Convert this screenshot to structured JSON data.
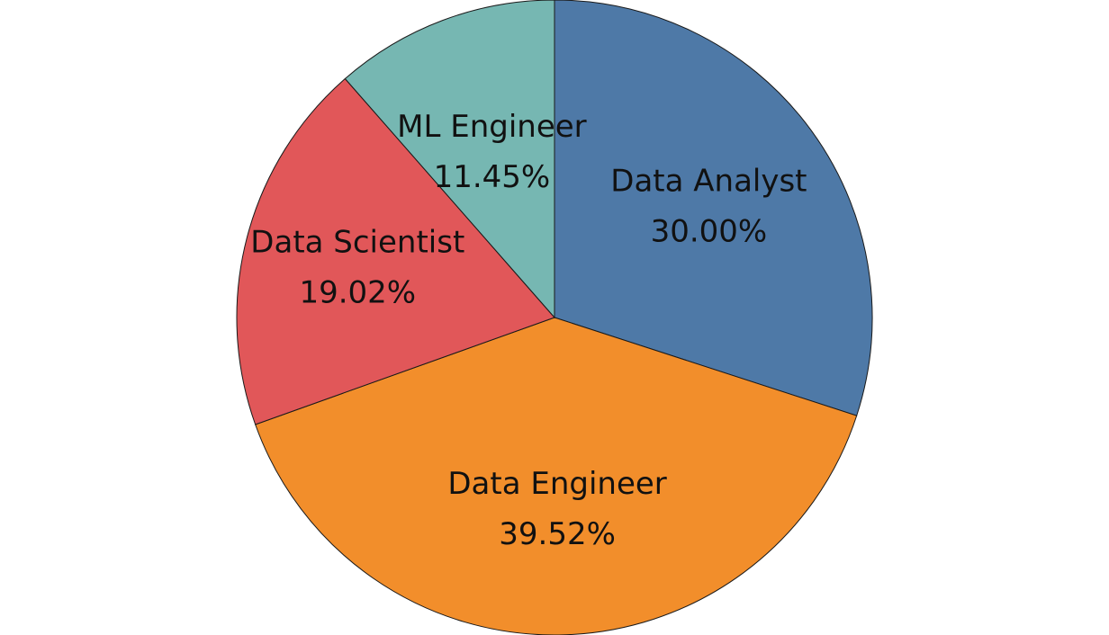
{
  "chart_data": {
    "type": "pie",
    "title": "",
    "legend": "none",
    "start": "12 o'clock",
    "direction": "clockwise",
    "slices": [
      {
        "name": "Data Analyst",
        "value": 30.0,
        "label": "30.00%",
        "color": "#4e79a7"
      },
      {
        "name": "Data Engineer",
        "value": 39.52,
        "label": "39.52%",
        "color": "#f28e2b"
      },
      {
        "name": "Data Scientist",
        "value": 19.02,
        "label": "19.02%",
        "color": "#e15759"
      },
      {
        "name": "ML Engineer",
        "value": 11.45,
        "label": "11.45%",
        "color": "#76b7b2"
      }
    ]
  }
}
